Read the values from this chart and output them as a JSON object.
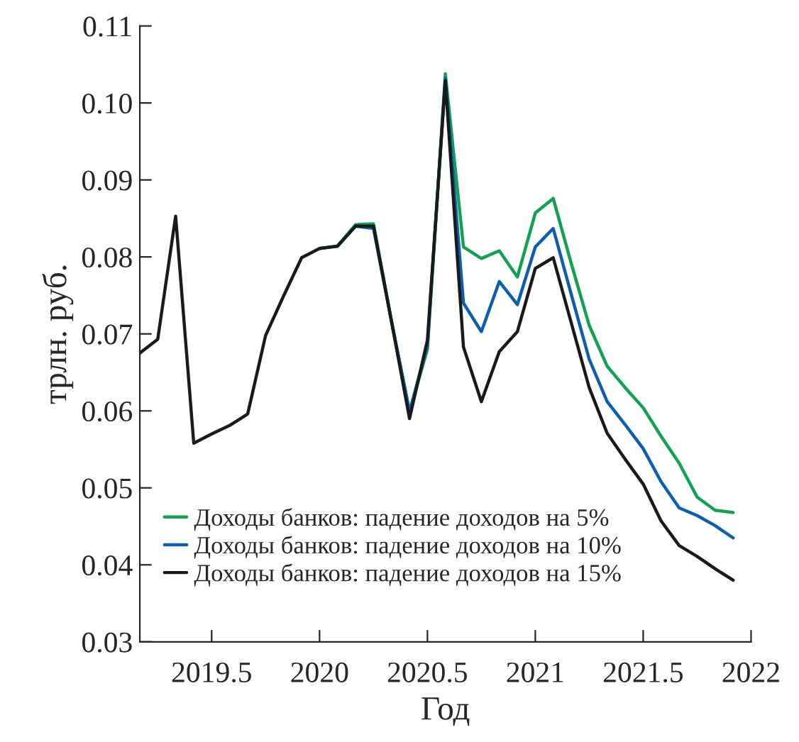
{
  "chart_data": {
    "type": "line",
    "xlabel": "Год",
    "ylabel": "трлн. руб.",
    "x": [
      2019.167,
      2019.25,
      2019.333,
      2019.417,
      2019.5,
      2019.583,
      2019.667,
      2019.75,
      2019.833,
      2019.917,
      2020.0,
      2020.083,
      2020.167,
      2020.25,
      2020.333,
      2020.417,
      2020.5,
      2020.583,
      2020.667,
      2020.75,
      2020.833,
      2020.917,
      2021.0,
      2021.083,
      2021.167,
      2021.25,
      2021.333,
      2021.417,
      2021.5,
      2021.583,
      2021.667,
      2021.75,
      2021.833,
      2021.917
    ],
    "series": [
      {
        "name": "Доходы банков: падение доходов на 5%",
        "color": "#12a150",
        "values": [
          null,
          null,
          null,
          null,
          null,
          null,
          null,
          null,
          null,
          null,
          0.0811,
          0.0814,
          0.0842,
          0.0843,
          0.0717,
          0.0599,
          0.068,
          0.1038,
          0.0813,
          0.0798,
          0.0808,
          0.0774,
          0.0857,
          0.0876,
          0.0791,
          0.0711,
          0.0658,
          0.063,
          0.0604,
          0.0567,
          0.0532,
          0.0488,
          0.0471,
          0.0468
        ]
      },
      {
        "name": "Доходы банков: падение доходов на 10%",
        "color": "#0b5fae",
        "values": [
          null,
          null,
          null,
          null,
          null,
          null,
          null,
          null,
          null,
          null,
          null,
          0.0814,
          0.084,
          0.0837,
          0.0717,
          0.0599,
          0.0685,
          0.1032,
          0.074,
          0.0703,
          0.0768,
          0.0738,
          0.0813,
          0.0837,
          0.0751,
          0.0667,
          0.0612,
          0.0582,
          0.0551,
          0.0508,
          0.0474,
          0.0464,
          0.0451,
          0.0435
        ]
      },
      {
        "name": "Доходы банков: падение доходов на 15%",
        "color": "#1a1a1a",
        "values": [
          0.0675,
          0.0693,
          0.0853,
          0.0558,
          0.057,
          0.0581,
          0.0596,
          0.0698,
          0.0749,
          0.0799,
          0.0811,
          0.0814,
          0.084,
          0.084,
          0.0717,
          0.059,
          0.0692,
          0.1029,
          0.0683,
          0.0612,
          0.0677,
          0.0703,
          0.0785,
          0.0799,
          0.0714,
          0.063,
          0.0571,
          0.0537,
          0.0505,
          0.0457,
          0.0425,
          0.0411,
          0.0395,
          0.038
        ]
      }
    ],
    "xlim": [
      2019.167,
      2022
    ],
    "xticks": [
      2019.5,
      2020,
      2020.5,
      2021,
      2021.5,
      2022
    ],
    "ylim": [
      0.03,
      0.11
    ],
    "yticks": [
      0.03,
      0.04,
      0.05,
      0.06,
      0.07,
      0.08,
      0.09,
      {
        "value": 0.1,
        "label": "0.10"
      },
      0.11
    ],
    "legend": "bottom left",
    "grid": false,
    "line_style": "solid"
  }
}
